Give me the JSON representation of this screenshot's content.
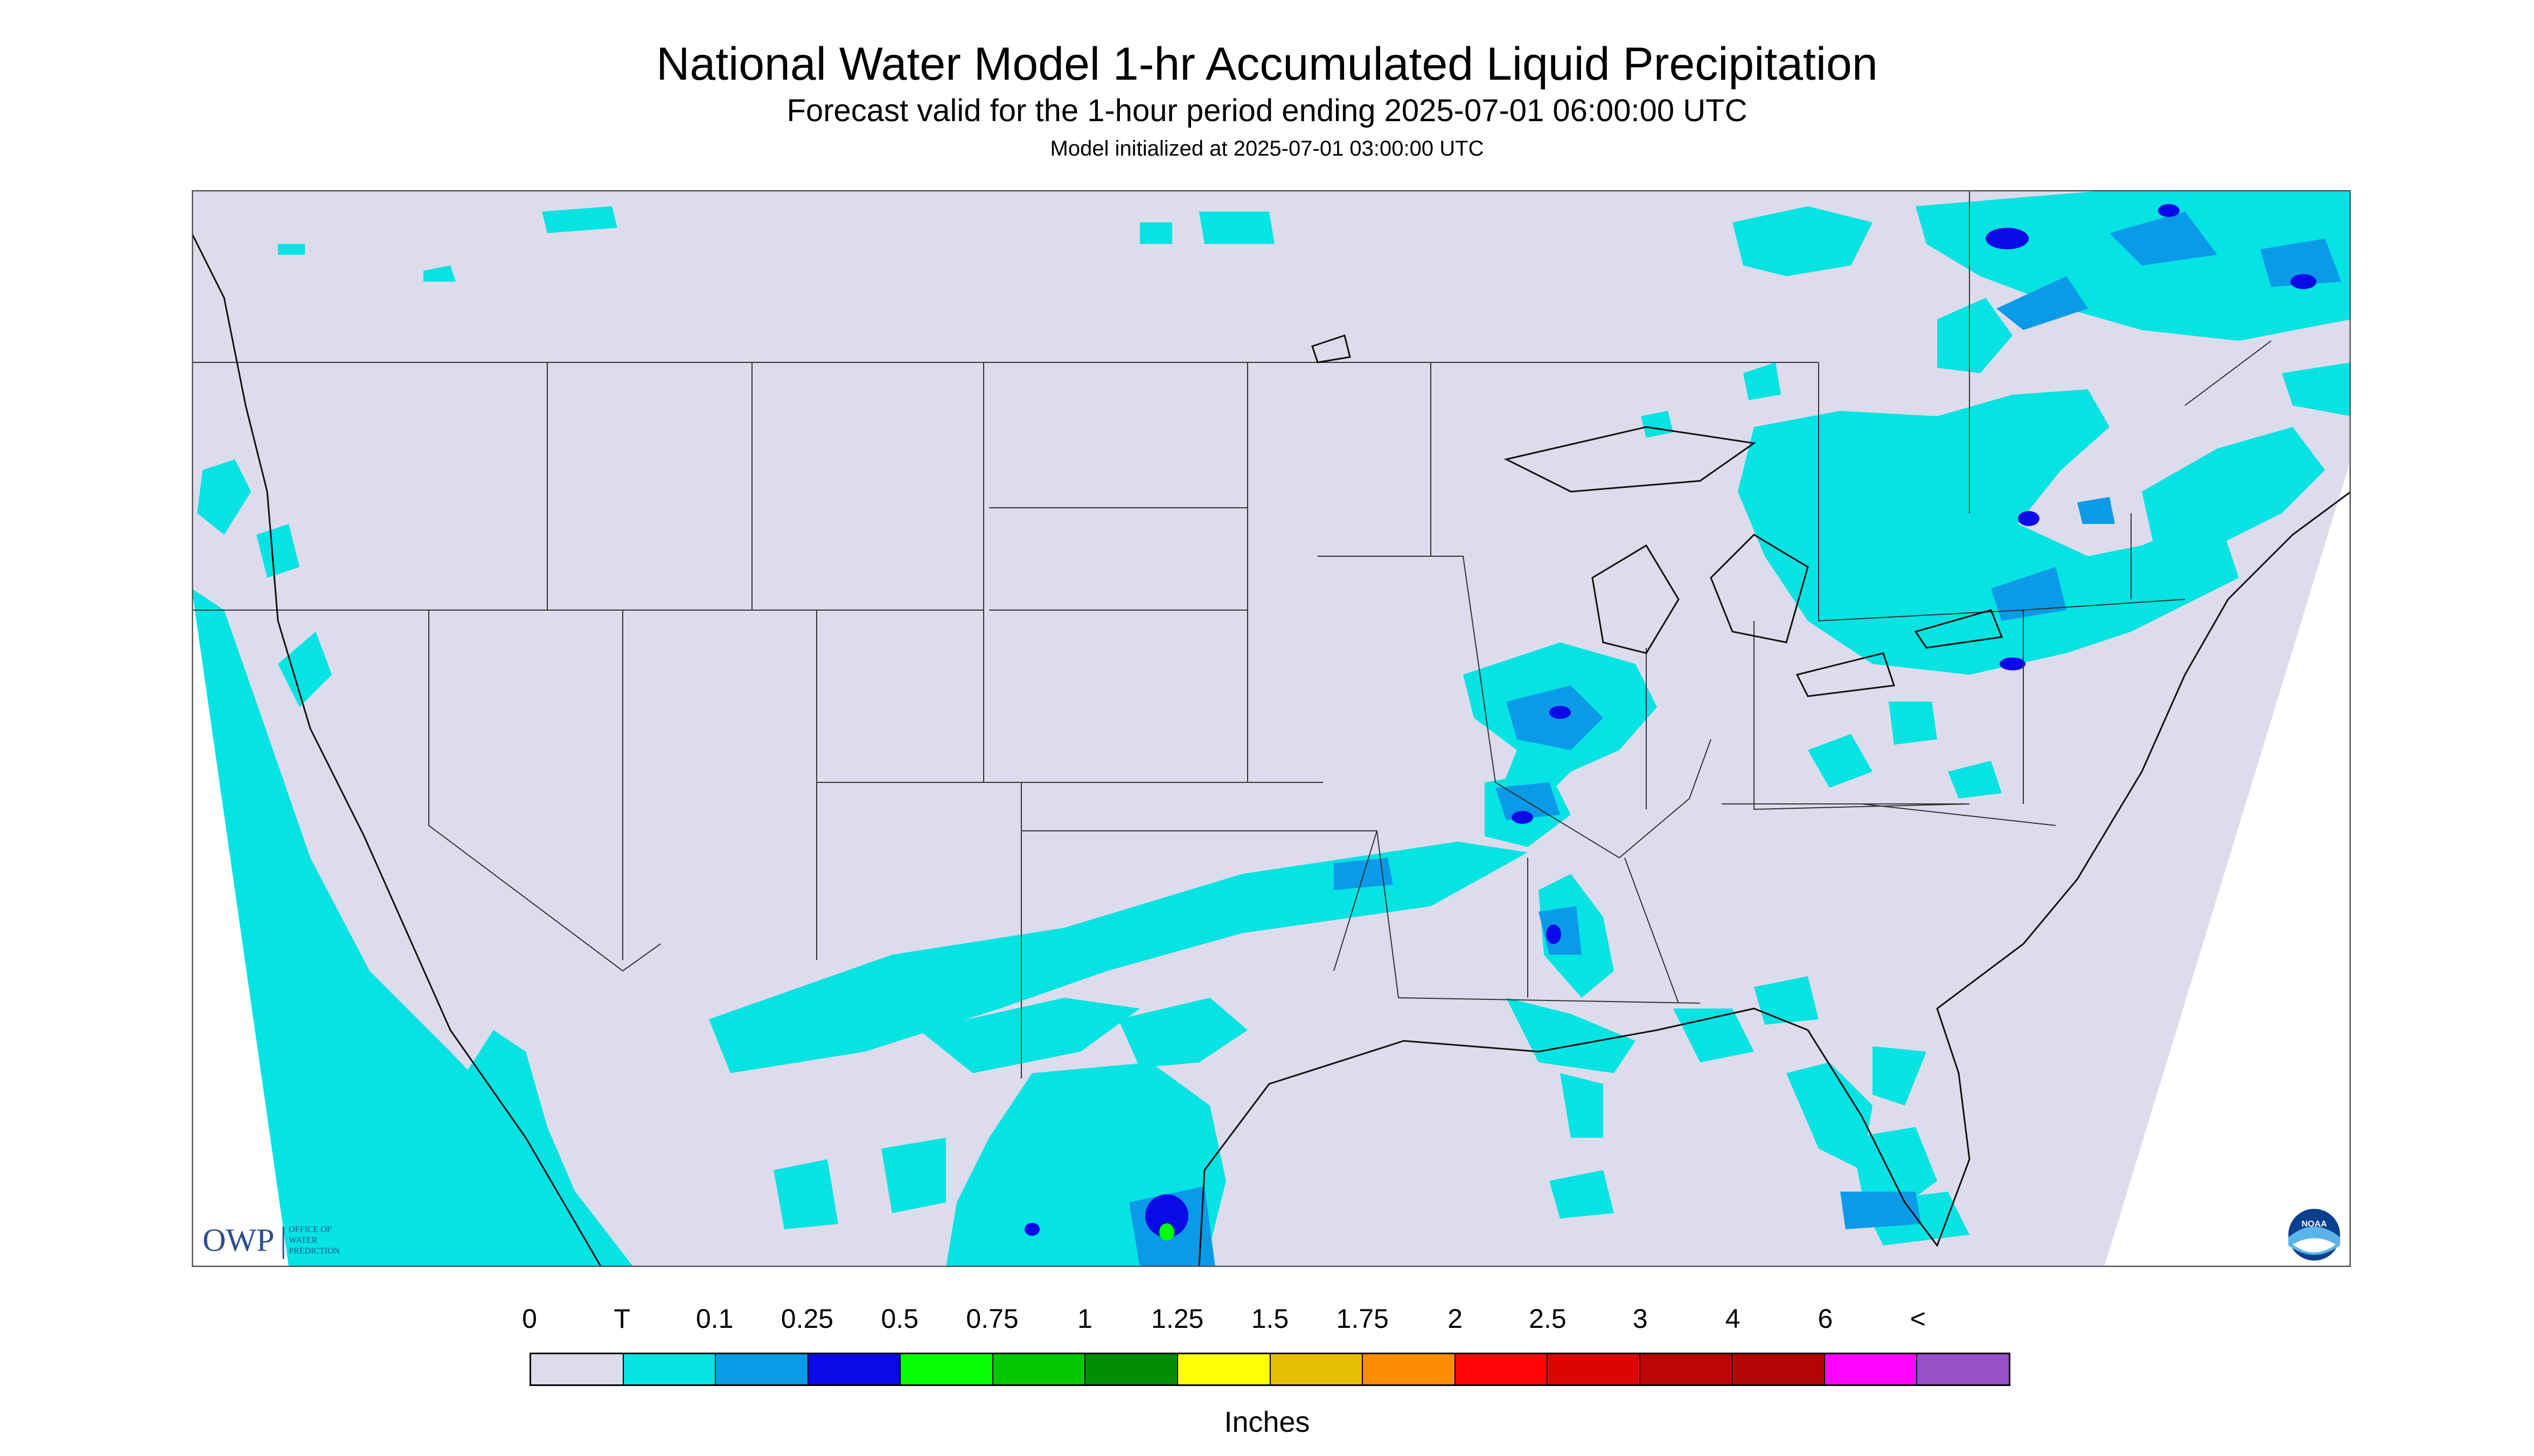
{
  "header": {
    "title": "National Water Model 1-hr Accumulated Liquid Precipitation",
    "subtitle": "Forecast valid for the 1-hour period ending 2025-07-01 06:00:00 UTC",
    "init_line": "Model initialized at 2025-07-01 03:00:00 UTC"
  },
  "map": {
    "background_color": "#dcdcec",
    "trace_color": "#05e3e3",
    "light_color": "#0a9ae8",
    "heavy_color": "#0a0ae8",
    "region": "Contiguous United States",
    "logos": {
      "owp_mark": "OWP",
      "owp_text": [
        "OFFICE OF",
        "WATER",
        "PREDICTION"
      ],
      "noaa_text": "NOAA"
    }
  },
  "legend": {
    "labels": [
      "0",
      "T",
      "0.1",
      "0.25",
      "0.5",
      "0.75",
      "1",
      "1.25",
      "1.5",
      "1.75",
      "2",
      "2.5",
      "3",
      "4",
      "6",
      "<"
    ],
    "colors": [
      "#dcdcec",
      "#05e3e3",
      "#0a9ae8",
      "#0a0ae8",
      "#05ff05",
      "#05c805",
      "#058c05",
      "#ffff05",
      "#e6be05",
      "#ff8c05",
      "#ff0505",
      "#dc0505",
      "#be0505",
      "#b40505",
      "#ff05ff",
      "#9650c8"
    ],
    "units": "Inches"
  }
}
